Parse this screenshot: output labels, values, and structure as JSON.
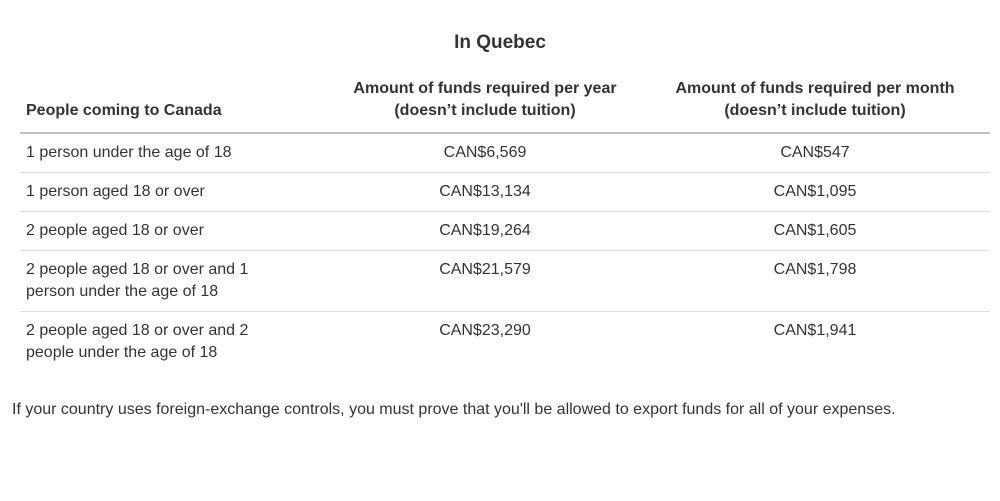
{
  "title": "In Quebec",
  "table": {
    "columns": [
      {
        "label": "People coming to Canada"
      },
      {
        "line1": "Amount of funds required per year",
        "line2": "(doesn’t include tuition)"
      },
      {
        "line1": "Amount of funds required per month",
        "line2": "(doesn’t include tuition)"
      }
    ],
    "rows": [
      {
        "people": "1 person under the age of 18",
        "per_year": "CAN$6,569",
        "per_month": "CAN$547"
      },
      {
        "people": "1 person aged 18 or over",
        "per_year": "CAN$13,134",
        "per_month": "CAN$1,095"
      },
      {
        "people": "2 people aged 18 or over",
        "per_year": "CAN$19,264",
        "per_month": "CAN$1,605"
      },
      {
        "people": "2 people aged 18 or over and 1 person under the age of 18",
        "per_year": "CAN$21,579",
        "per_month": "CAN$1,798"
      },
      {
        "people": "2 people aged 18 or over and 2 people under the age of 18",
        "per_year": "CAN$23,290",
        "per_month": "CAN$1,941"
      }
    ]
  },
  "footnote": "If your country uses foreign-exchange controls, you must prove that you'll be allowed to export funds for all of your expenses.",
  "colors": {
    "background": "#ffffff",
    "text": "#333333",
    "header_border": "#c0c0c0",
    "row_border": "#dddddd"
  }
}
